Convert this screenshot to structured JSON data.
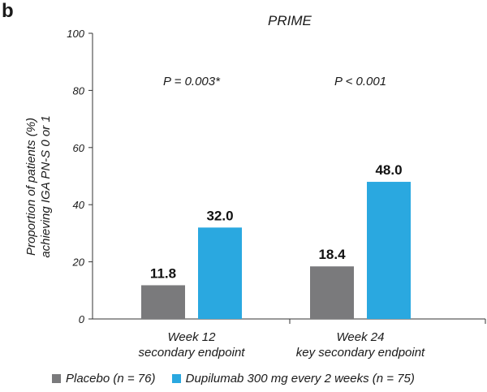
{
  "panel_label": "b",
  "chart_data": {
    "type": "bar",
    "title": "PRIME",
    "ylabel": "Proportion of patients (%) achieving IGA PN-S 0 or 1",
    "ylabel_lines": [
      "Proportion of patients (%)",
      "achieving IGA PN-S 0 or 1"
    ],
    "xlabel": "",
    "ylim": [
      0,
      100
    ],
    "yticks": [
      0,
      20,
      40,
      60,
      80,
      100
    ],
    "categories": [
      "Week 12 secondary endpoint",
      "Week 24 key secondary endpoint"
    ],
    "category_lines": [
      [
        "Week 12",
        "secondary endpoint"
      ],
      [
        "Week 24",
        "key secondary endpoint"
      ]
    ],
    "series": [
      {
        "name": "Placebo (n = 76)",
        "color": "#7a7a7c",
        "values": [
          11.8,
          18.4
        ],
        "labels": [
          "11.8",
          "18.4"
        ]
      },
      {
        "name": "Dupilumab 300 mg every 2 weeks (n = 75)",
        "color": "#2aa8e0",
        "values": [
          32.0,
          48.0
        ],
        "labels": [
          "32.0",
          "48.0"
        ]
      }
    ],
    "annotations": [
      "P = 0.003*",
      "P < 0.001"
    ],
    "grid": false,
    "legend_position": "bottom"
  }
}
